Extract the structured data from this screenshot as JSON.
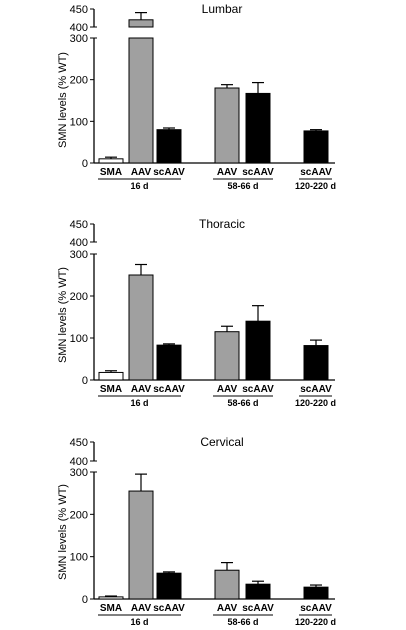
{
  "colors": {
    "sma": "#ffffff",
    "aav": "#a0a0a0",
    "scaav": "#000000",
    "axis": "#000000"
  },
  "chart_data": [
    {
      "type": "bar",
      "title": "Lumbar",
      "ylabel": "SMN levels (% WT)",
      "ylim": [
        0,
        450
      ],
      "axis_break": [
        300,
        400
      ],
      "yticks_lower": [
        "0",
        "100",
        "200",
        "300"
      ],
      "yticks_upper": [
        "400",
        "450"
      ],
      "categories": [
        "SMA",
        "AAV",
        "scAAV",
        "AAV",
        "scAAV",
        "scAAV"
      ],
      "groups": [
        {
          "label": "16 d",
          "members": [
            0,
            1,
            2
          ]
        },
        {
          "label": "58-66 d",
          "members": [
            3,
            4
          ]
        },
        {
          "label": "120-220 d",
          "members": [
            5
          ]
        }
      ],
      "values": [
        10,
        420,
        80,
        180,
        167,
        77
      ],
      "errors": [
        4,
        20,
        4,
        8,
        26,
        3
      ]
    },
    {
      "type": "bar",
      "title": "Thoracic",
      "ylabel": "SMN levels (% WT)",
      "ylim": [
        0,
        450
      ],
      "axis_break": [
        300,
        400
      ],
      "yticks_lower": [
        "0",
        "100",
        "200",
        "300"
      ],
      "yticks_upper": [
        "400",
        "450"
      ],
      "categories": [
        "SMA",
        "AAV",
        "scAAV",
        "AAV",
        "scAAV",
        "scAAV"
      ],
      "groups": [
        {
          "label": "16 d",
          "members": [
            0,
            1,
            2
          ]
        },
        {
          "label": "58-66 d",
          "members": [
            3,
            4
          ]
        },
        {
          "label": "120-220 d",
          "members": [
            5
          ]
        }
      ],
      "values": [
        18,
        250,
        83,
        115,
        140,
        82
      ],
      "errors": [
        4,
        25,
        3,
        13,
        37,
        13
      ]
    },
    {
      "type": "bar",
      "title": "Cervical",
      "ylabel": "SMN levels (% WT)",
      "ylim": [
        0,
        450
      ],
      "axis_break": [
        300,
        400
      ],
      "yticks_lower": [
        "0",
        "100",
        "200",
        "300"
      ],
      "yticks_upper": [
        "400",
        "450"
      ],
      "categories": [
        "SMA",
        "AAV",
        "scAAV",
        "AAV",
        "scAAV",
        "scAAV"
      ],
      "groups": [
        {
          "label": "16 d",
          "members": [
            0,
            1,
            2
          ]
        },
        {
          "label": "58-66 d",
          "members": [
            3,
            4
          ]
        },
        {
          "label": "120-220 d",
          "members": [
            5
          ]
        }
      ],
      "values": [
        5,
        255,
        61,
        68,
        35,
        28
      ],
      "errors": [
        2,
        40,
        3,
        18,
        7,
        5
      ]
    }
  ]
}
